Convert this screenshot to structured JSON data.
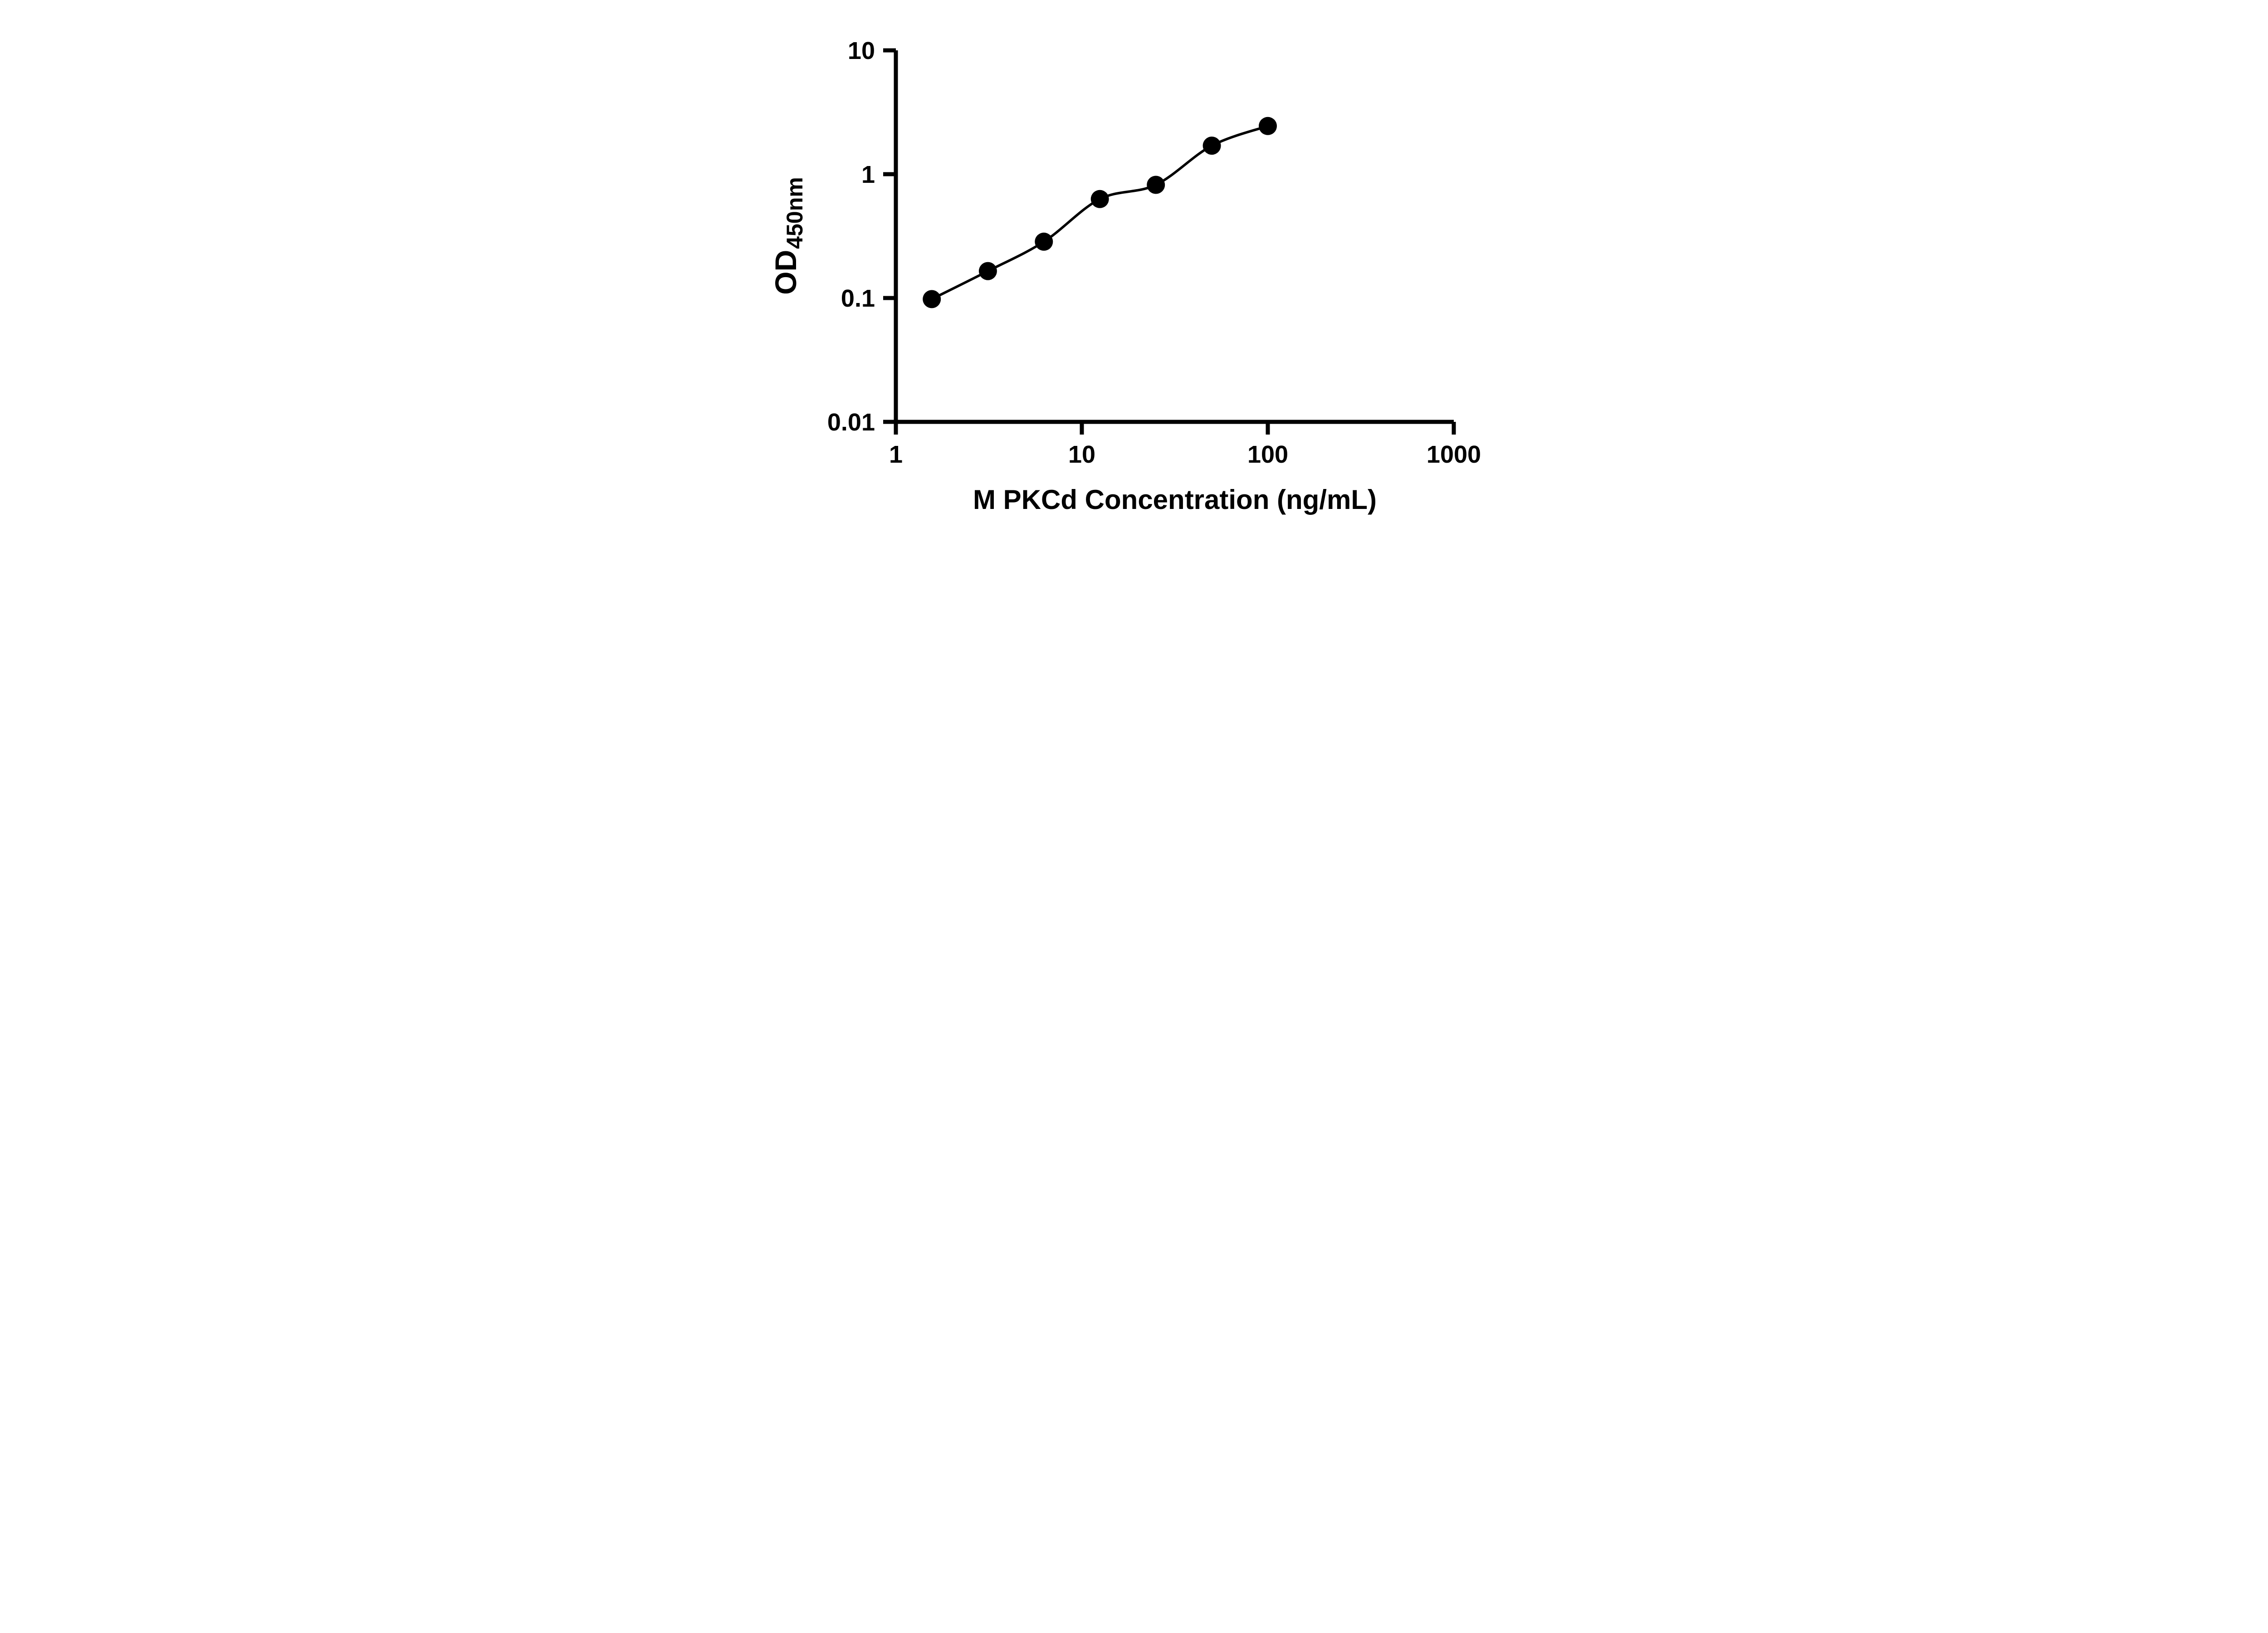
{
  "chart_data": {
    "type": "scatter",
    "title": "",
    "xlabel": "M PKCd Concentration (ng/mL)",
    "ylabel_main": "OD",
    "ylabel_sub": "450nm",
    "x_scale": "log10",
    "y_scale": "log10",
    "xlim": [
      1,
      1000
    ],
    "ylim": [
      0.01,
      10
    ],
    "x_ticks": [
      1,
      10,
      100,
      1000
    ],
    "x_tick_labels": [
      "1",
      "10",
      "100",
      "1000"
    ],
    "y_ticks": [
      0.01,
      0.1,
      1,
      10
    ],
    "y_tick_labels": [
      "0.01",
      "0.1",
      "1",
      "10"
    ],
    "grid": false,
    "legend": "none",
    "fit": "smooth standard curve through points",
    "series": [
      {
        "name": "M PKCd standard curve",
        "marker": "filled-circle",
        "points": [
          {
            "x": 1.56,
            "y": 0.098
          },
          {
            "x": 3.125,
            "y": 0.165
          },
          {
            "x": 6.25,
            "y": 0.285
          },
          {
            "x": 12.5,
            "y": 0.63
          },
          {
            "x": 25,
            "y": 0.82
          },
          {
            "x": 50,
            "y": 1.7
          },
          {
            "x": 100,
            "y": 2.45
          }
        ]
      }
    ]
  },
  "colors": {
    "background": "#ffffff",
    "axis": "#000000",
    "curve": "#000000",
    "marker": "#000000",
    "text": "#000000"
  }
}
